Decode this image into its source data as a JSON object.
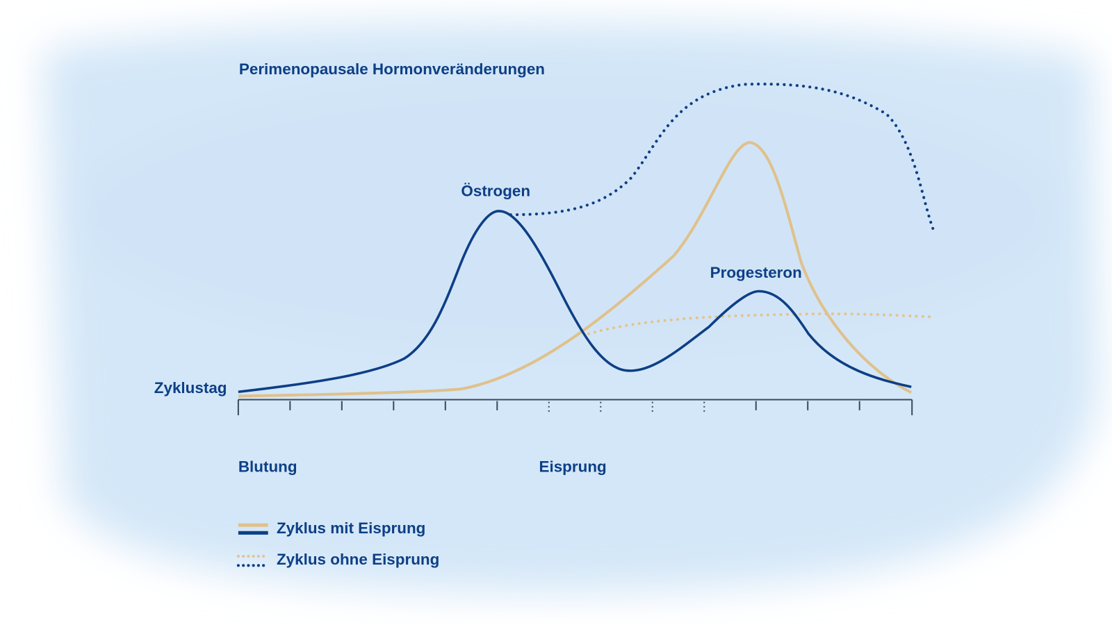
{
  "title": "Perimenopausale Hormonveränderungen",
  "axis_label": "Zyklustag",
  "curve_labels": {
    "estrogen": "Östrogen",
    "progesterone": "Progesteron"
  },
  "phase_labels": {
    "bleeding": "Blutung",
    "ovulation": "Eisprung"
  },
  "legend": [
    "Zyklus mit Eisprung",
    "Zyklus ohne Eisprung"
  ]
}
